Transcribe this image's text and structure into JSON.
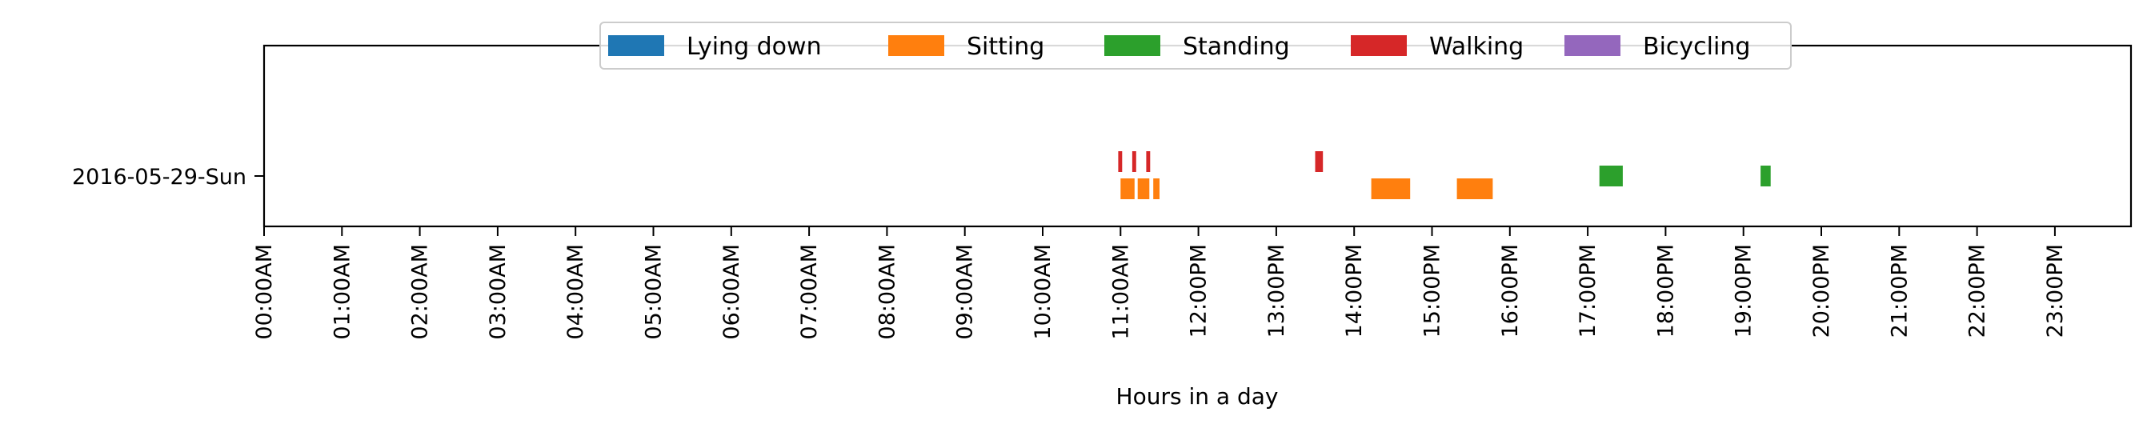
{
  "chart_data": {
    "type": "broken-bar",
    "title": "",
    "xlabel": "Hours in a day",
    "ylabel": "",
    "xlim": [
      0,
      24
    ],
    "x_ticks": [
      "00:00AM",
      "01:00AM",
      "02:00AM",
      "03:00AM",
      "04:00AM",
      "05:00AM",
      "06:00AM",
      "07:00AM",
      "08:00AM",
      "09:00AM",
      "10:00AM",
      "11:00AM",
      "12:00PM",
      "13:00PM",
      "14:00PM",
      "15:00PM",
      "16:00PM",
      "17:00PM",
      "18:00PM",
      "19:00PM",
      "20:00PM",
      "21:00PM",
      "22:00PM",
      "23:00PM"
    ],
    "categories": [
      "2016-05-29-Sun"
    ],
    "grid": false,
    "legend": {
      "placement": "top-center",
      "entries": [
        {
          "name": "Lying down",
          "color": "#1f77b4"
        },
        {
          "name": "Sitting",
          "color": "#ff7f0e"
        },
        {
          "name": "Standing",
          "color": "#2ca02c"
        },
        {
          "name": "Walking",
          "color": "#d62728"
        },
        {
          "name": "Bicycling",
          "color": "#9467bd"
        }
      ]
    },
    "series": [
      {
        "name": "Lying down",
        "color": "#1f77b4",
        "intervals": []
      },
      {
        "name": "Sitting",
        "color": "#ff7f0e",
        "intervals": [
          [
            11.0,
            11.18
          ],
          [
            11.22,
            11.37
          ],
          [
            11.42,
            11.5
          ],
          [
            14.22,
            14.72
          ],
          [
            15.32,
            15.78
          ]
        ]
      },
      {
        "name": "Standing",
        "color": "#2ca02c",
        "intervals": [
          [
            17.15,
            17.45
          ],
          [
            19.22,
            19.35
          ]
        ]
      },
      {
        "name": "Walking",
        "color": "#d62728",
        "intervals": [
          [
            10.97,
            11.02
          ],
          [
            11.15,
            11.2
          ],
          [
            11.33,
            11.38
          ],
          [
            13.5,
            13.6
          ]
        ]
      },
      {
        "name": "Bicycling",
        "color": "#9467bd",
        "intervals": []
      }
    ]
  }
}
